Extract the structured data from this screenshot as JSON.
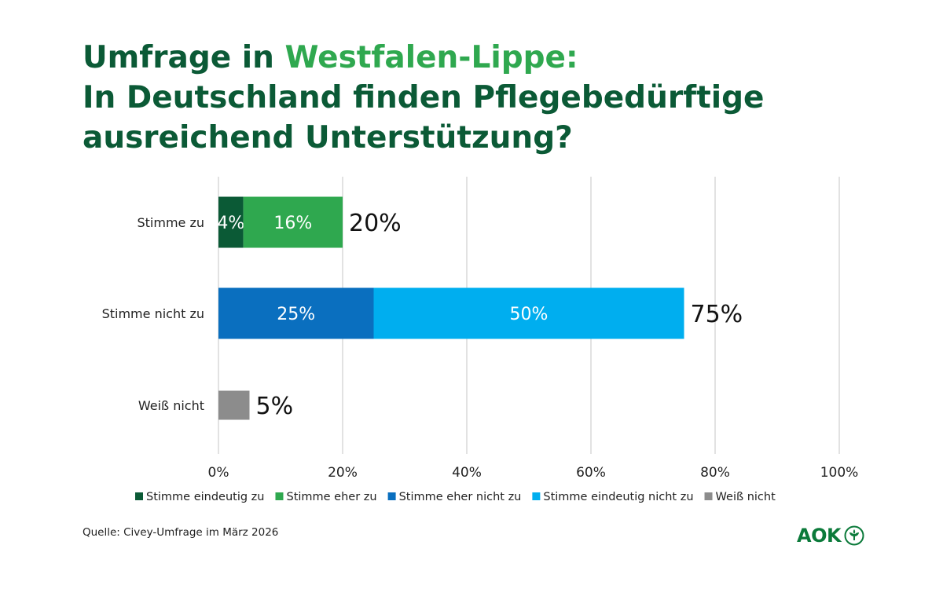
{
  "title": {
    "line1_prefix": "Umfrage in ",
    "line1_accent": "Westfalen-Lippe:",
    "line2": "In Deutschland finden Pflegebedürftige",
    "line3": "ausreichend Unterstützung?"
  },
  "colors": {
    "title_dark": "#0b5a36",
    "title_accent": "#2fa84f",
    "eindeutig_zu": "#0b5a36",
    "eher_zu": "#2fa84f",
    "eher_nicht_zu": "#0a6fbf",
    "eindeutig_nicht_zu": "#00aeef",
    "weiss_nicht": "#8c8c8c",
    "grid": "#d9d9d9"
  },
  "chart_data": {
    "type": "bar",
    "orientation": "horizontal",
    "stacked": true,
    "categories": [
      "Stimme zu",
      "Stimme nicht zu",
      "Weiß nicht"
    ],
    "series": [
      {
        "name": "Stimme eindeutig zu",
        "color_key": "eindeutig_zu",
        "values": [
          4,
          0,
          0
        ],
        "labels": [
          "4%",
          "",
          ""
        ]
      },
      {
        "name": "Stimme eher zu",
        "color_key": "eher_zu",
        "values": [
          16,
          0,
          0
        ],
        "labels": [
          "16%",
          "",
          ""
        ]
      },
      {
        "name": "Stimme eher nicht zu",
        "color_key": "eher_nicht_zu",
        "values": [
          0,
          25,
          0
        ],
        "labels": [
          "",
          "25%",
          ""
        ]
      },
      {
        "name": "Stimme eindeutig nicht zu",
        "color_key": "eindeutig_nicht_zu",
        "values": [
          0,
          50,
          0
        ],
        "labels": [
          "",
          "50%",
          ""
        ]
      },
      {
        "name": "Weiß nicht",
        "color_key": "weiss_nicht",
        "values": [
          0,
          0,
          5
        ],
        "labels": [
          "",
          "",
          ""
        ]
      }
    ],
    "totals": [
      "20%",
      "75%",
      "5%"
    ],
    "xlim": [
      0,
      100
    ],
    "xticks": [
      0,
      20,
      40,
      60,
      80,
      100
    ],
    "xtick_labels": [
      "0%",
      "20%",
      "40%",
      "60%",
      "80%",
      "100%"
    ],
    "grid": true,
    "legend_position": "bottom"
  },
  "source": "Quelle: Civey-Umfrage im März 2026",
  "logo": {
    "text": "AOK",
    "icon": "aok-tree-icon"
  }
}
